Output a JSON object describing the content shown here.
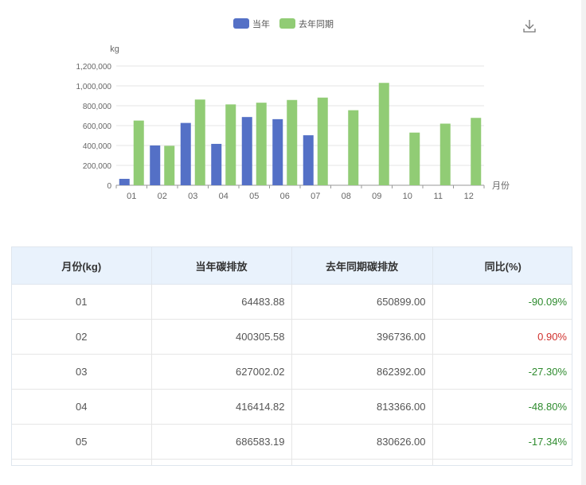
{
  "chart_data": {
    "type": "bar",
    "categories": [
      "01",
      "02",
      "03",
      "04",
      "05",
      "06",
      "07",
      "08",
      "09",
      "10",
      "11",
      "12"
    ],
    "series": [
      {
        "name": "当年",
        "color": "#5470c6",
        "values": [
          64483.88,
          400305.58,
          627002.02,
          416414.82,
          686583.19,
          665000,
          503000,
          null,
          null,
          null,
          null,
          null
        ]
      },
      {
        "name": "去年同期",
        "color": "#91cc75",
        "values": [
          650899.0,
          396736.0,
          862392.0,
          813366.0,
          830626.0,
          858000,
          882000,
          755000,
          1030000,
          530000,
          620000,
          678000
        ]
      }
    ],
    "ylabel": "kg",
    "xlabel": "月份",
    "ylim": [
      0,
      1200000
    ],
    "yticks": [
      "0",
      "200,000",
      "400,000",
      "600,000",
      "800,000",
      "1,000,000",
      "1,200,000"
    ],
    "legend_position": "top",
    "grid": true
  },
  "toolbar": {
    "download_icon": "download-icon"
  },
  "table": {
    "headers": [
      "月份(kg)",
      "当年碳排放",
      "去年同期碳排放",
      "同比(%)"
    ],
    "rows": [
      {
        "month": "01",
        "current": "64483.88",
        "last": "650899.00",
        "ratio": "-90.09%",
        "trend": "neg"
      },
      {
        "month": "02",
        "current": "400305.58",
        "last": "396736.00",
        "ratio": "0.90%",
        "trend": "pos"
      },
      {
        "month": "03",
        "current": "627002.02",
        "last": "862392.00",
        "ratio": "-27.30%",
        "trend": "neg"
      },
      {
        "month": "04",
        "current": "416414.82",
        "last": "813366.00",
        "ratio": "-48.80%",
        "trend": "neg"
      },
      {
        "month": "05",
        "current": "686583.19",
        "last": "830626.00",
        "ratio": "-17.34%",
        "trend": "neg"
      }
    ]
  }
}
